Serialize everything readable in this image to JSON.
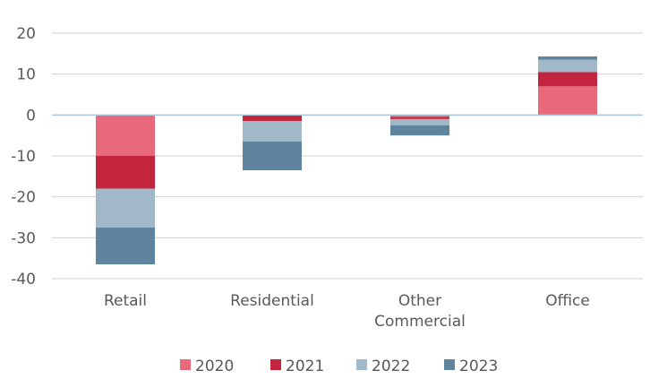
{
  "chart_data": {
    "type": "bar",
    "stacked": true,
    "title": "",
    "xlabel": "",
    "ylabel": "",
    "categories": [
      [
        "Retail"
      ],
      [
        "Residential"
      ],
      [
        "Other",
        "Commercial"
      ],
      [
        "Office"
      ]
    ],
    "ylim": [
      -40,
      20
    ],
    "yticks": [
      20,
      10,
      0,
      -10,
      -20,
      -30,
      -40
    ],
    "grid": true,
    "legend_position": "bottom",
    "series": [
      {
        "name": "2020",
        "color": "#e8697a",
        "values": [
          -10,
          0,
          -0.5,
          7
        ]
      },
      {
        "name": "2021",
        "color": "#c3243e",
        "values": [
          -8,
          -1.5,
          -0.5,
          3.5
        ]
      },
      {
        "name": "2022",
        "color": "#a1b8c8",
        "values": [
          -9.5,
          -5,
          -1.5,
          3
        ]
      },
      {
        "name": "2023",
        "color": "#5f849d",
        "values": [
          -9,
          -7,
          -2.5,
          0.8
        ]
      }
    ]
  }
}
